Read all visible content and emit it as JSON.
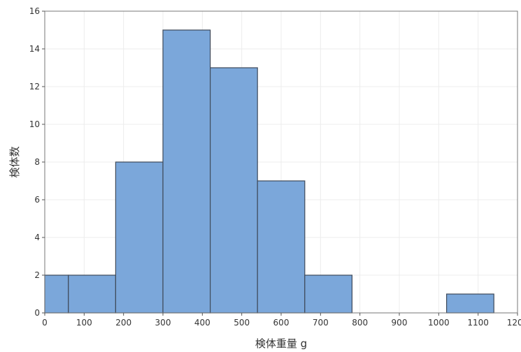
{
  "chart_data": {
    "type": "bar",
    "title": "",
    "xlabel": "検体重量 g",
    "ylabel": "検体数",
    "xlim": [
      0,
      1200
    ],
    "ylim": [
      0,
      16
    ],
    "x_ticks": [
      0,
      100,
      200,
      300,
      400,
      500,
      600,
      700,
      800,
      900,
      1000,
      1100,
      1200
    ],
    "y_ticks": [
      0,
      2,
      4,
      6,
      8,
      10,
      12,
      14,
      16
    ],
    "grid": true,
    "legend": "none",
    "bar_color": "#7ba7da",
    "edge_color": "#3f4a5a",
    "bins": [
      {
        "start": 0,
        "end": 60,
        "count": 2
      },
      {
        "start": 60,
        "end": 180,
        "count": 2
      },
      {
        "start": 180,
        "end": 300,
        "count": 8
      },
      {
        "start": 300,
        "end": 420,
        "count": 15
      },
      {
        "start": 420,
        "end": 540,
        "count": 13
      },
      {
        "start": 540,
        "end": 660,
        "count": 7
      },
      {
        "start": 660,
        "end": 780,
        "count": 2
      },
      {
        "start": 780,
        "end": 900,
        "count": 0
      },
      {
        "start": 900,
        "end": 1020,
        "count": 0
      },
      {
        "start": 1020,
        "end": 1140,
        "count": 1
      }
    ]
  }
}
